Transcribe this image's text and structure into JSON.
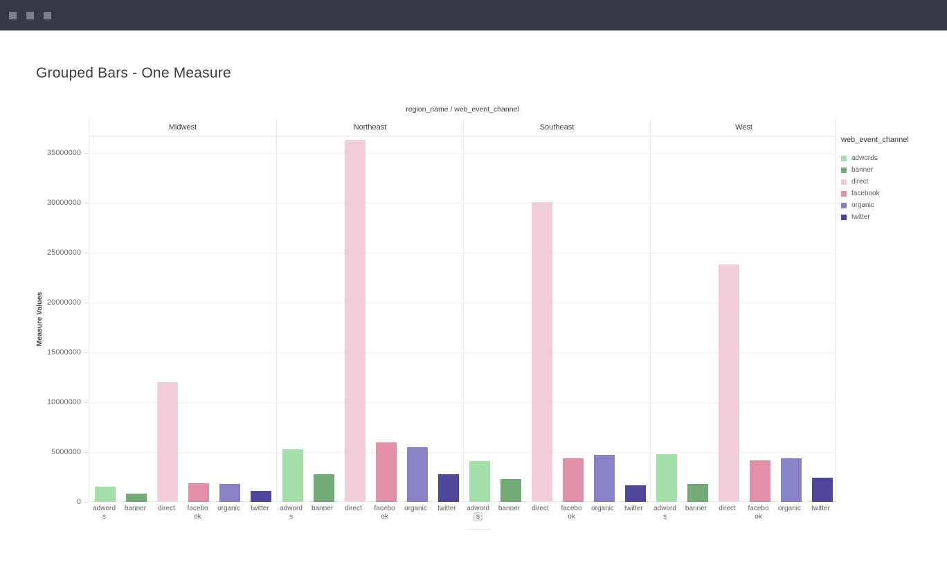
{
  "window": {
    "bar_color": "#363943",
    "button_color": "#7a7e88",
    "button_count": 3
  },
  "page": {
    "heading": "Grouped Bars - One Measure"
  },
  "chart_data": {
    "type": "bar",
    "title": "Grouped Bars - One Measure",
    "facet_axis_title": "region_name / web_event_channel",
    "ylabel": "Measure Values",
    "xlabel": "",
    "legend_title": "web_event_channel",
    "legend_position": "right",
    "grid": true,
    "ylim": [
      0,
      36700000
    ],
    "yticks": [
      0,
      5000000,
      10000000,
      15000000,
      20000000,
      25000000,
      30000000,
      35000000
    ],
    "categories": [
      "Midwest",
      "Northeast",
      "Southeast",
      "West"
    ],
    "channels": [
      "adwords",
      "banner",
      "direct",
      "facebook",
      "organic",
      "twitter"
    ],
    "channel_colors": {
      "adwords": "#a3dfa8",
      "banner": "#72ab75",
      "direct": "#f1cdd8",
      "facebook": "#e18fa5",
      "organic": "#8781c6",
      "twitter": "#4d4699"
    },
    "x_tick_labels": [
      [
        "adword",
        "s"
      ],
      [
        "banner",
        ""
      ],
      [
        "direct",
        ""
      ],
      [
        "facebo",
        "ok"
      ],
      [
        "organic",
        ""
      ],
      [
        "twitter",
        ""
      ]
    ],
    "series": [
      {
        "name": "Midwest",
        "values": [
          1500000,
          850000,
          12000000,
          1900000,
          1800000,
          1100000
        ]
      },
      {
        "name": "Northeast",
        "values": [
          5300000,
          2800000,
          36300000,
          6000000,
          5500000,
          2750000
        ]
      },
      {
        "name": "Southeast",
        "values": [
          4100000,
          2300000,
          30100000,
          4400000,
          4700000,
          1700000
        ]
      },
      {
        "name": "West",
        "values": [
          4800000,
          1800000,
          23800000,
          4200000,
          4400000,
          2400000
        ]
      }
    ],
    "artifacts": {
      "highlighted_x_label": {
        "region": "Southeast",
        "channel": "adwords",
        "line": 2
      }
    }
  }
}
